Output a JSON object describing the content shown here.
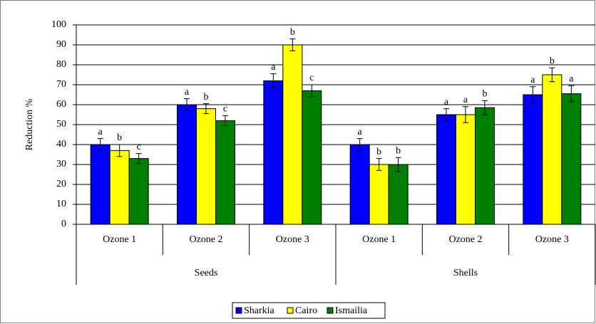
{
  "chart_data": {
    "type": "bar",
    "y_label": "Reduction %",
    "groups": [
      {
        "label": "Seeds",
        "categories": [
          "Ozone 1",
          "Ozone 2",
          "Ozone 3"
        ]
      },
      {
        "label": "Shells",
        "categories": [
          "Ozone 1",
          "Ozone 2",
          "Ozone 3"
        ]
      }
    ],
    "series": [
      {
        "name": "Sharkia",
        "color": "#0000ff",
        "values": [
          40,
          60,
          72,
          40,
          55,
          65
        ],
        "errors": [
          3,
          3,
          3.5,
          3,
          3,
          4
        ],
        "letters": [
          "a",
          "a",
          "a",
          "a",
          "a",
          "a"
        ]
      },
      {
        "name": "Cairo",
        "color": "#ffff00",
        "values": [
          37,
          58,
          90,
          30,
          55,
          75
        ],
        "errors": [
          3,
          2.5,
          3,
          3,
          4,
          3.5
        ],
        "letters": [
          "b",
          "b",
          "b",
          "b",
          "a",
          "b"
        ]
      },
      {
        "name": "Ismailia",
        "color": "#008000",
        "values": [
          33,
          52,
          67,
          30,
          58.5,
          65.5
        ],
        "errors": [
          2.5,
          2.5,
          3,
          3.5,
          3.5,
          4
        ],
        "letters": [
          "c",
          "c",
          "c",
          "b",
          "b",
          "a"
        ]
      }
    ],
    "annotations": [
      "b"
    ],
    "ylim": [
      0,
      100
    ],
    "yticks": [
      0,
      10,
      20,
      30,
      40,
      50,
      60,
      70,
      80,
      90,
      100
    ],
    "grid": true,
    "legend": "bottom"
  }
}
